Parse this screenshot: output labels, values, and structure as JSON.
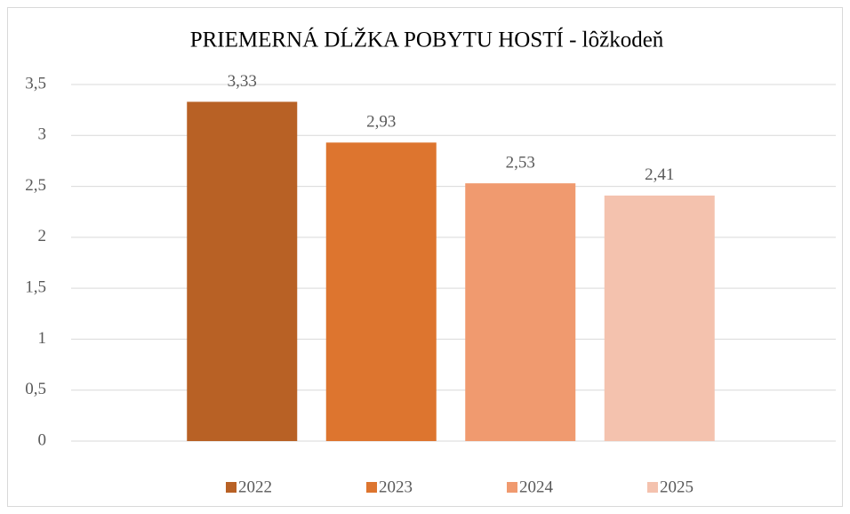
{
  "chart_data": {
    "type": "bar",
    "title": "PRIEMERNÁ DĹŽKA POBYTU HOSTÍ - lôžkodeň",
    "categories": [
      null
    ],
    "series": [
      {
        "name": "2022",
        "color": "#b86125",
        "values": [
          3.33
        ],
        "value_labels": [
          "3,33"
        ]
      },
      {
        "name": "2023",
        "color": "#dd752f",
        "values": [
          2.93
        ],
        "value_labels": [
          "2,93"
        ]
      },
      {
        "name": "2024",
        "color": "#f09a6f",
        "values": [
          2.53
        ],
        "value_labels": [
          "2,53"
        ]
      },
      {
        "name": "2025",
        "color": "#f4c2ae",
        "values": [
          2.41
        ],
        "value_labels": [
          "2,41"
        ]
      }
    ],
    "ylim": [
      0,
      3.5
    ],
    "yticks": [
      0,
      {
        "value": 0.5,
        "label": "0,5"
      },
      1,
      {
        "value": 1.5,
        "label": "1,5"
      },
      2,
      {
        "value": 2.5,
        "label": "2,5"
      },
      3,
      {
        "value": 3.5,
        "label": "3,5"
      }
    ],
    "grid": true,
    "legend": "bottom"
  }
}
